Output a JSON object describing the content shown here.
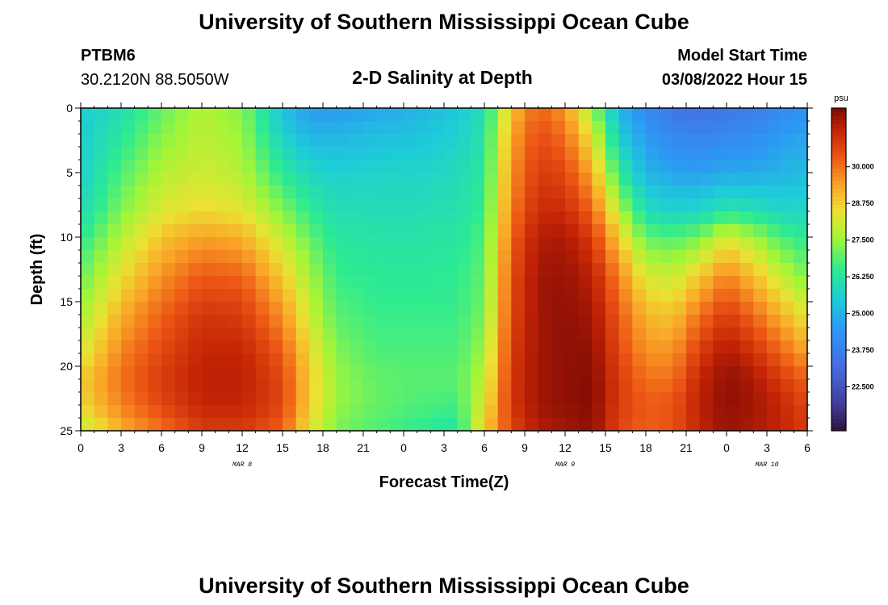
{
  "header": {
    "title": "University of Southern Mississippi Ocean Cube",
    "station_id": "PTBM6",
    "station_coords": "30.2120N  88.5050W",
    "chart_title": "2-D Salinity at Depth",
    "model_start_label": "Model Start Time",
    "model_start_value": "03/08/2022 Hour 15"
  },
  "footer": {
    "title": "University of Southern Mississippi Ocean Cube"
  },
  "chart_data": {
    "type": "heatmap",
    "title": "2-D Salinity at Depth",
    "xlabel": "Forecast Time(Z)",
    "ylabel": "Depth (ft)",
    "x_range_hours": [
      0,
      54
    ],
    "y_range_ft": [
      0,
      25
    ],
    "x_tick_labels": [
      "0",
      "3",
      "6",
      "9",
      "12",
      "15",
      "18",
      "21",
      "0",
      "3",
      "6",
      "9",
      "12",
      "15",
      "18",
      "21",
      "0",
      "3",
      "6"
    ],
    "y_tick_labels": [
      "0",
      "5",
      "10",
      "15",
      "20",
      "25"
    ],
    "day_labels": [
      {
        "text": "MAR 8",
        "hour": 12
      },
      {
        "text": "MAR 9",
        "hour": 36
      },
      {
        "text": "MAR 10",
        "hour": 51
      }
    ],
    "colorbar": {
      "unit": "psu",
      "range": [
        21,
        32
      ],
      "tick_labels": [
        "30.000",
        "28.750",
        "27.500",
        "26.250",
        "25.000",
        "23.750",
        "22.500"
      ],
      "tick_values": [
        30.0,
        28.75,
        27.5,
        26.25,
        25.0,
        23.75,
        22.5
      ]
    },
    "cell_hours": 1,
    "cell_depth_ft": 1,
    "depth_profiles_psu": {
      "depths_ft": [
        0,
        2,
        5,
        8,
        10,
        13,
        16,
        19,
        21,
        23,
        25
      ],
      "profiles": [
        {
          "hour": 0,
          "values": [
            25.5,
            25.5,
            25.6,
            25.9,
            26.4,
            27.0,
            27.6,
            28.2,
            28.8,
            28.6,
            27.8
          ]
        },
        {
          "hour": 3,
          "values": [
            26.0,
            26.3,
            26.8,
            27.3,
            27.8,
            28.5,
            29.2,
            29.8,
            30.0,
            29.8,
            29.2
          ]
        },
        {
          "hour": 6,
          "values": [
            27.0,
            27.3,
            27.8,
            28.3,
            28.9,
            29.6,
            30.2,
            30.6,
            30.8,
            30.6,
            30.0
          ]
        },
        {
          "hour": 9,
          "values": [
            27.8,
            27.9,
            28.1,
            28.6,
            29.4,
            30.3,
            30.9,
            31.2,
            31.3,
            31.2,
            30.8
          ]
        },
        {
          "hour": 12,
          "values": [
            27.3,
            27.5,
            27.8,
            28.4,
            29.2,
            30.2,
            30.8,
            31.2,
            31.3,
            31.2,
            30.8
          ]
        },
        {
          "hour": 15,
          "values": [
            25.3,
            25.6,
            26.4,
            27.3,
            28.0,
            28.8,
            29.6,
            30.3,
            30.6,
            30.6,
            30.2
          ]
        },
        {
          "hour": 17,
          "values": [
            24.5,
            25.0,
            25.8,
            26.5,
            27.0,
            27.6,
            28.1,
            28.6,
            28.8,
            28.8,
            28.4
          ]
        },
        {
          "hour": 19,
          "values": [
            24.5,
            25.0,
            25.6,
            26.0,
            26.3,
            26.6,
            26.9,
            27.3,
            27.5,
            27.5,
            27.2
          ]
        },
        {
          "hour": 22,
          "values": [
            24.7,
            25.2,
            25.7,
            26.0,
            26.2,
            26.4,
            26.6,
            26.8,
            27.0,
            27.0,
            26.8
          ]
        },
        {
          "hour": 25,
          "values": [
            25.0,
            25.3,
            25.7,
            26.0,
            26.2,
            26.4,
            26.6,
            26.8,
            26.9,
            26.8,
            26.5
          ]
        },
        {
          "hour": 28,
          "values": [
            25.4,
            25.6,
            25.9,
            26.1,
            26.3,
            26.5,
            26.6,
            26.8,
            26.9,
            26.7,
            26.2
          ]
        },
        {
          "hour": 30,
          "values": [
            26.0,
            26.2,
            26.4,
            26.6,
            26.8,
            27.0,
            27.2,
            27.6,
            27.9,
            28.3,
            28.8
          ]
        },
        {
          "hour": 32,
          "values": [
            29.0,
            29.3,
            29.6,
            29.9,
            30.2,
            30.5,
            30.6,
            30.8,
            30.9,
            30.9,
            30.6
          ]
        },
        {
          "hour": 34,
          "values": [
            30.2,
            30.5,
            30.8,
            31.1,
            31.4,
            31.6,
            31.6,
            31.6,
            31.6,
            31.6,
            31.4
          ]
        },
        {
          "hour": 36,
          "values": [
            29.5,
            30.0,
            30.6,
            31.1,
            31.5,
            31.7,
            31.8,
            31.8,
            31.8,
            31.8,
            31.6
          ]
        },
        {
          "hour": 38,
          "values": [
            27.5,
            28.3,
            29.3,
            30.2,
            30.8,
            31.3,
            31.6,
            31.8,
            31.9,
            31.9,
            31.8
          ]
        },
        {
          "hour": 40,
          "values": [
            25.0,
            25.5,
            26.5,
            27.8,
            28.8,
            29.8,
            30.3,
            30.6,
            30.8,
            30.8,
            30.6
          ]
        },
        {
          "hour": 42,
          "values": [
            24.0,
            24.5,
            25.0,
            26.0,
            27.0,
            28.2,
            29.1,
            29.6,
            30.0,
            30.3,
            30.2
          ]
        },
        {
          "hour": 44,
          "values": [
            23.5,
            24.0,
            24.7,
            25.7,
            26.8,
            28.0,
            28.9,
            29.6,
            30.0,
            30.4,
            30.4
          ]
        },
        {
          "hour": 46,
          "values": [
            23.3,
            23.8,
            24.6,
            25.8,
            27.2,
            28.8,
            30.0,
            30.8,
            31.2,
            31.3,
            31.2
          ]
        },
        {
          "hour": 48,
          "values": [
            23.5,
            24.0,
            24.8,
            26.3,
            28.3,
            29.8,
            30.8,
            31.5,
            31.8,
            31.8,
            31.7
          ]
        },
        {
          "hour": 50,
          "values": [
            23.6,
            24.1,
            24.8,
            26.1,
            27.6,
            29.0,
            30.1,
            31.0,
            31.5,
            31.6,
            31.5
          ]
        },
        {
          "hour": 52,
          "values": [
            24.0,
            24.5,
            25.0,
            25.8,
            26.8,
            28.0,
            29.2,
            30.2,
            30.8,
            31.2,
            31.2
          ]
        },
        {
          "hour": 54,
          "values": [
            24.3,
            24.7,
            25.2,
            25.8,
            26.4,
            27.2,
            28.3,
            29.4,
            30.2,
            30.6,
            30.8
          ]
        }
      ]
    }
  }
}
